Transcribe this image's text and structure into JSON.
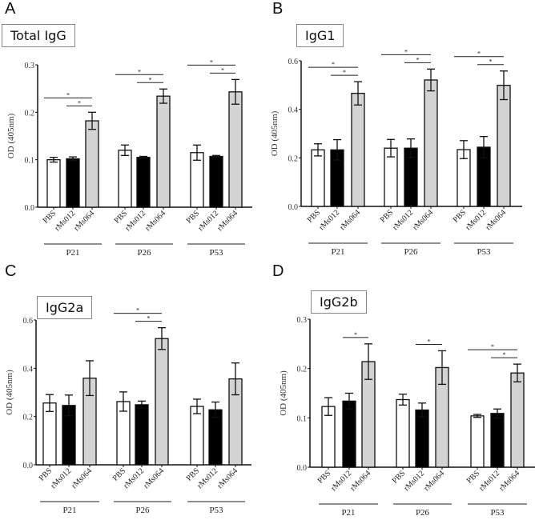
{
  "chart_data": [
    {
      "type": "bar",
      "panel": "A",
      "title": "Total IgG",
      "ylabel": "OD (405nm)",
      "ylim": [
        0,
        0.3
      ],
      "yticks": [
        "0.0",
        "0.1",
        "0.2",
        "0.3"
      ],
      "categories": [
        "PBS",
        "rMs012",
        "rMs064"
      ],
      "groups": [
        "P21",
        "P26",
        "P53"
      ],
      "values": [
        [
          0.1,
          0.102,
          0.182
        ],
        [
          0.12,
          0.105,
          0.234
        ],
        [
          0.115,
          0.107,
          0.243
        ]
      ],
      "errors": [
        [
          0.005,
          0.004,
          0.018
        ],
        [
          0.011,
          0.002,
          0.015
        ],
        [
          0.016,
          0.002,
          0.026
        ]
      ],
      "significance": [
        [
          [
            0,
            2
          ],
          [
            1,
            2
          ]
        ],
        [
          [
            0,
            2
          ],
          [
            1,
            2
          ]
        ],
        [
          [
            0,
            2
          ],
          [
            1,
            2
          ]
        ]
      ],
      "sig_label": "*"
    },
    {
      "type": "bar",
      "panel": "B",
      "title": "IgG1",
      "ylabel": "OD (405nm)",
      "ylim": [
        0,
        0.6
      ],
      "yticks": [
        "0.0",
        "0.2",
        "0.4",
        "0.6"
      ],
      "categories": [
        "PBS",
        "rMs012",
        "rMs064"
      ],
      "groups": [
        "P21",
        "P26",
        "P53"
      ],
      "values": [
        [
          0.233,
          0.233,
          0.466
        ],
        [
          0.24,
          0.24,
          0.521
        ],
        [
          0.234,
          0.244,
          0.499
        ]
      ],
      "errors": [
        [
          0.025,
          0.042,
          0.048
        ],
        [
          0.036,
          0.038,
          0.045
        ],
        [
          0.037,
          0.044,
          0.059
        ]
      ],
      "significance": [
        [
          [
            0,
            2
          ],
          [
            1,
            2
          ]
        ],
        [
          [
            0,
            2
          ],
          [
            1,
            2
          ]
        ],
        [
          [
            0,
            2
          ],
          [
            1,
            2
          ]
        ]
      ],
      "sig_label": "*"
    },
    {
      "type": "bar",
      "panel": "C",
      "title": "IgG2a",
      "ylabel": "OD (405nm)",
      "ylim": [
        0,
        0.6
      ],
      "yticks": [
        "0.0",
        "0.2",
        "0.4",
        "0.6"
      ],
      "categories": [
        "PBS",
        "rMs012",
        "rMs064"
      ],
      "groups": [
        "P21",
        "P26",
        "P53"
      ],
      "values": [
        [
          0.256,
          0.246,
          0.359
        ],
        [
          0.262,
          0.249,
          0.523
        ],
        [
          0.242,
          0.228,
          0.356
        ]
      ],
      "errors": [
        [
          0.035,
          0.043,
          0.072
        ],
        [
          0.04,
          0.015,
          0.045
        ],
        [
          0.03,
          0.032,
          0.066
        ]
      ],
      "significance": [
        [],
        [
          [
            0,
            2
          ],
          [
            1,
            2
          ]
        ],
        []
      ],
      "sig_label": "*"
    },
    {
      "type": "bar",
      "panel": "D",
      "title": "IgG2b",
      "ylabel": "OD (405nm)",
      "ylim": [
        0,
        0.3
      ],
      "yticks": [
        "0.0",
        "0.1",
        "0.2",
        "0.3"
      ],
      "categories": [
        "PBS",
        "rMs012",
        "rMs064"
      ],
      "groups": [
        "P21",
        "P26",
        "P53"
      ],
      "values": [
        [
          0.123,
          0.134,
          0.214
        ],
        [
          0.137,
          0.116,
          0.202
        ],
        [
          0.104,
          0.109,
          0.191
        ]
      ],
      "errors": [
        [
          0.018,
          0.016,
          0.036
        ],
        [
          0.011,
          0.014,
          0.034
        ],
        [
          0.003,
          0.009,
          0.018
        ]
      ],
      "significance": [
        [
          [
            1,
            2
          ]
        ],
        [
          [
            1,
            2
          ]
        ],
        [
          [
            0,
            2
          ],
          [
            1,
            2
          ]
        ]
      ],
      "sig_label": "*"
    }
  ],
  "colors": {
    "PBS": "#ffffff",
    "rMs012": "#000000",
    "rMs064": "#d3d3d3",
    "axis": "#111111"
  }
}
